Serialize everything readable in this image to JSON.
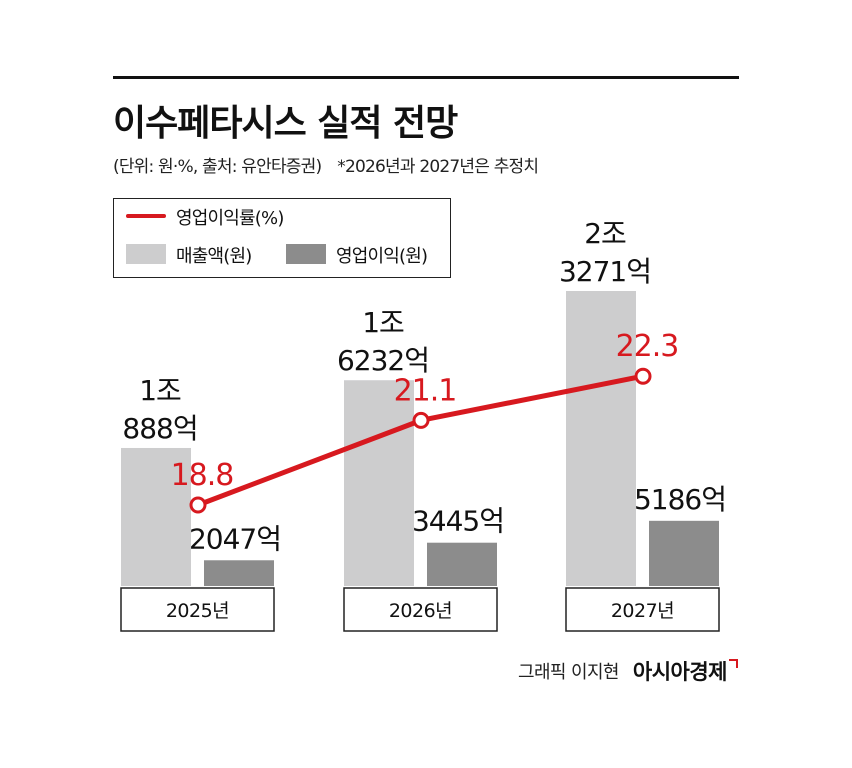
{
  "header": {
    "title": "이수페타시스 실적 전망",
    "subtitle": "(단위: 원·%, 출처: 유안타증권)",
    "note": "*2026년과 2027년은 추정치"
  },
  "legend": {
    "line_label": "영업이익률(%)",
    "bar1_label": "매출액(원)",
    "bar2_label": "영업이익(원)"
  },
  "credit": {
    "text": "그래픽 이지현",
    "brand": "아시아경제"
  },
  "colors": {
    "revenue_bar": "#cdcdce",
    "profit_bar": "#8c8c8c",
    "margin_line": "#d7191f"
  },
  "chart_data": {
    "type": "bar",
    "title": "이수페타시스 실적 전망",
    "categories": [
      "2025년",
      "2026년",
      "2027년"
    ],
    "series": [
      {
        "name": "매출액(원)",
        "kind": "bar",
        "values": [
          10888,
          16232,
          23271
        ],
        "unit": "억 원",
        "labels": [
          [
            "1조",
            "888억"
          ],
          [
            "1조",
            "6232억"
          ],
          [
            "2조",
            "3271억"
          ]
        ]
      },
      {
        "name": "영업이익(원)",
        "kind": "bar",
        "values": [
          2047,
          3445,
          5186
        ],
        "unit": "억 원",
        "labels": [
          "2047억",
          "3445억",
          "5186억"
        ]
      },
      {
        "name": "영업이익률(%)",
        "kind": "line",
        "values": [
          18.8,
          21.1,
          22.3
        ],
        "labels": [
          "18.8",
          "21.1",
          "22.3"
        ]
      }
    ],
    "legend": "top-left",
    "grid": false
  }
}
